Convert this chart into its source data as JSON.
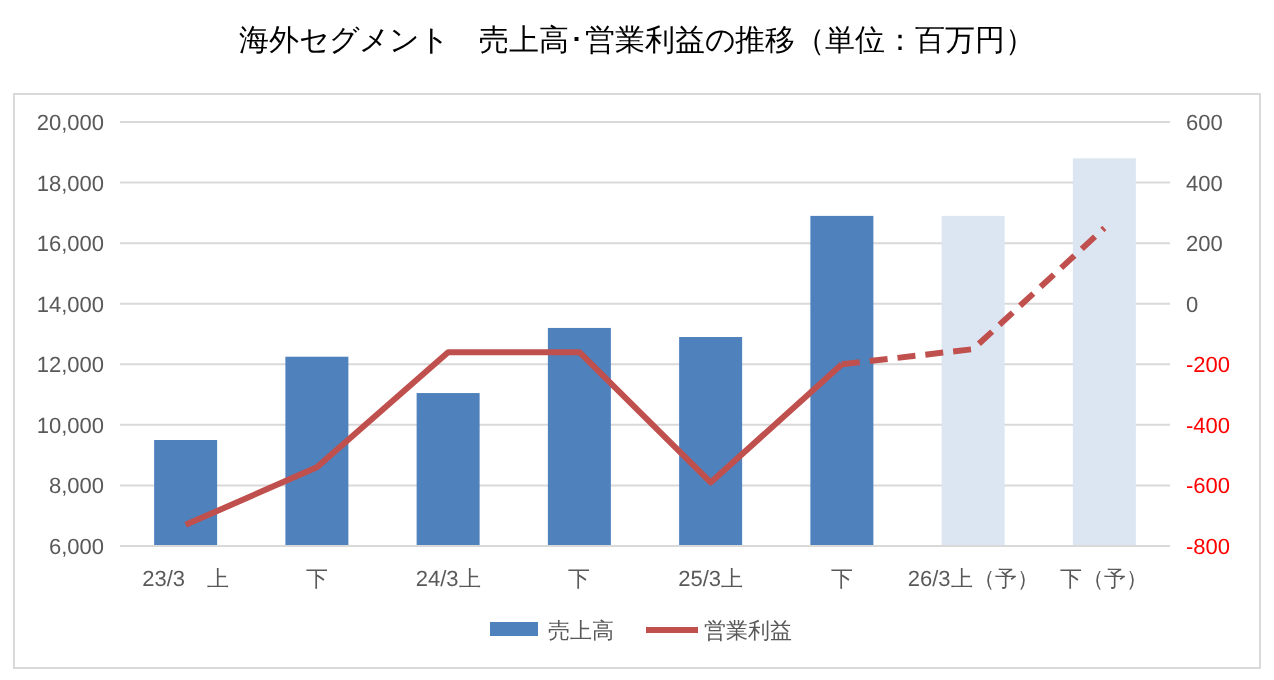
{
  "chart_data": {
    "type": "bar",
    "title": "海外セグメント　売上高･営業利益の推移（単位：百万円）",
    "categories": [
      "23/3　上",
      "下",
      "24/3上",
      "下",
      "25/3上",
      "下",
      "26/3上（予）",
      "下（予）"
    ],
    "series": [
      {
        "name": "売上高",
        "color": "#4f81bd",
        "colors": [
          "#4f81bd",
          "#4f81bd",
          "#4f81bd",
          "#4f81bd",
          "#4f81bd",
          "#4f81bd",
          "#dce6f2",
          "#dce6f2"
        ],
        "values": [
          9500,
          12250,
          11050,
          13200,
          12900,
          16900,
          16900,
          18800
        ]
      },
      {
        "name": "営業利益",
        "type": "line",
        "axis": "y2",
        "color": "#c0504d",
        "line_style": "solid",
        "values": [
          -730,
          -540,
          -160,
          -160,
          -590,
          -200,
          null,
          null
        ]
      },
      {
        "type": "line",
        "axis": "y2",
        "color": "#c0504d",
        "line_style": "dashed",
        "values": [
          null,
          null,
          null,
          null,
          null,
          -200,
          -150,
          250
        ]
      }
    ],
    "ylim": [
      6000,
      20000
    ],
    "yticks": [
      {
        "value": 6000,
        "label": "6,000"
      },
      {
        "value": 8000,
        "label": "8,000"
      },
      {
        "value": 10000,
        "label": "10,000"
      },
      {
        "value": 12000,
        "label": "12,000"
      },
      {
        "value": 14000,
        "label": "14,000"
      },
      {
        "value": 16000,
        "label": "16,000"
      },
      {
        "value": 18000,
        "label": "18,000"
      },
      {
        "value": 20000,
        "label": "20,000"
      }
    ],
    "y2lim": [
      -800,
      600
    ],
    "y2ticks": [
      -800,
      -600,
      -400,
      -200,
      0,
      200,
      400,
      600
    ],
    "grid": "y",
    "legend": "bottom"
  }
}
